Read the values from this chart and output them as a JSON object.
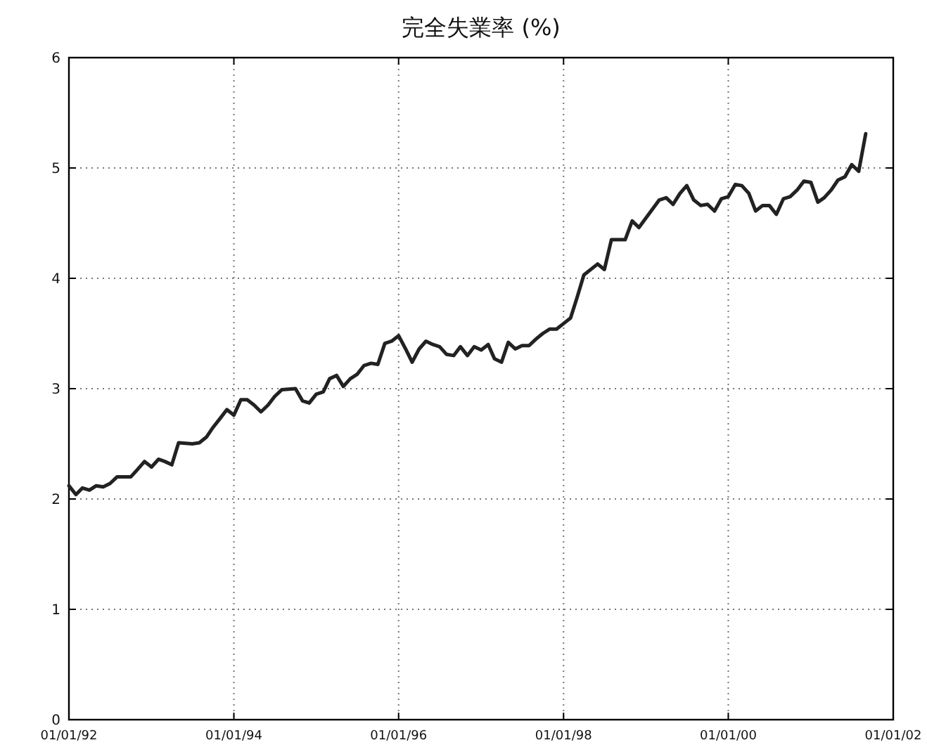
{
  "chart_data": {
    "type": "line",
    "title": "完全失業率 (%)",
    "x": [
      "1992-01",
      "1992-02",
      "1992-03",
      "1992-04",
      "1992-05",
      "1992-06",
      "1992-07",
      "1992-08",
      "1992-10",
      "1992-11",
      "1992-12",
      "1993-01",
      "1993-02",
      "1993-03",
      "1993-04",
      "1993-05",
      "1993-07",
      "1993-08",
      "1993-09",
      "1993-10",
      "1993-11",
      "1993-12",
      "1994-01",
      "1994-02",
      "1994-03",
      "1994-04",
      "1994-05",
      "1994-06",
      "1994-07",
      "1994-08",
      "1994-10",
      "1994-11",
      "1994-12",
      "1995-01",
      "1995-02",
      "1995-03",
      "1995-04",
      "1995-05",
      "1995-06",
      "1995-07",
      "1995-08",
      "1995-09",
      "1995-10",
      "1995-11",
      "1995-12",
      "1996-01",
      "1996-02",
      "1996-03",
      "1996-04",
      "1996-05",
      "1996-06",
      "1996-07",
      "1996-08",
      "1996-09",
      "1996-10",
      "1996-11",
      "1996-12",
      "1997-01",
      "1997-02",
      "1997-03",
      "1997-04",
      "1997-05",
      "1997-06",
      "1997-07",
      "1997-08",
      "1997-09",
      "1997-10",
      "1997-11",
      "1997-12",
      "1998-01",
      "1998-02",
      "1998-03",
      "1998-04",
      "1998-06",
      "1998-07",
      "1998-08",
      "1998-10",
      "1998-11",
      "1998-12",
      "1999-03",
      "1999-04",
      "1999-05",
      "1999-06",
      "1999-07",
      "1999-08",
      "1999-09",
      "1999-10",
      "1999-11",
      "1999-12",
      "2000-01",
      "2000-02",
      "2000-03",
      "2000-04",
      "2000-05",
      "2000-06",
      "2000-07",
      "2000-08",
      "2000-09",
      "2000-10",
      "2000-11",
      "2000-12",
      "2001-01",
      "2001-02",
      "2001-03",
      "2001-04",
      "2001-05",
      "2001-06",
      "2001-07",
      "2001-08",
      "2001-09"
    ],
    "series": [
      {
        "color": "#222222",
        "values": [
          2.12,
          2.04,
          2.1,
          2.08,
          2.12,
          2.11,
          2.14,
          2.2,
          2.2,
          2.27,
          2.34,
          2.29,
          2.36,
          2.34,
          2.31,
          2.51,
          2.5,
          2.51,
          2.56,
          2.65,
          2.73,
          2.81,
          2.76,
          2.9,
          2.9,
          2.85,
          2.79,
          2.85,
          2.93,
          2.99,
          3.0,
          2.89,
          2.87,
          2.95,
          2.97,
          3.09,
          3.12,
          3.02,
          3.09,
          3.13,
          3.21,
          3.23,
          3.22,
          3.41,
          3.43,
          3.48,
          3.36,
          3.24,
          3.36,
          3.43,
          3.4,
          3.38,
          3.31,
          3.3,
          3.38,
          3.3,
          3.38,
          3.35,
          3.4,
          3.27,
          3.24,
          3.42,
          3.36,
          3.39,
          3.39,
          3.45,
          3.5,
          3.54,
          3.54,
          3.59,
          3.64,
          3.82,
          4.03,
          4.13,
          4.08,
          4.35,
          4.35,
          4.52,
          4.46,
          4.71,
          4.73,
          4.67,
          4.77,
          4.84,
          4.71,
          4.66,
          4.67,
          4.61,
          4.72,
          4.74,
          4.85,
          4.84,
          4.77,
          4.61,
          4.66,
          4.66,
          4.58,
          4.72,
          4.74,
          4.8,
          4.88,
          4.87,
          4.69,
          4.73,
          4.8,
          4.89,
          4.92,
          5.03,
          4.97,
          5.31
        ]
      }
    ],
    "xlim": [
      "1992-01-01",
      "2002-01-01"
    ],
    "xticks": [
      {
        "value": "1992-01-01",
        "label": "01/01/92"
      },
      {
        "value": "1994-01-01",
        "label": "01/01/94"
      },
      {
        "value": "1996-01-01",
        "label": "01/01/96"
      },
      {
        "value": "1998-01-01",
        "label": "01/01/98"
      },
      {
        "value": "2000-01-01",
        "label": "01/01/00"
      },
      {
        "value": "2002-01-01",
        "label": "01/01/02"
      }
    ],
    "ylim": [
      0,
      6
    ],
    "yticks": [
      0,
      1,
      2,
      3,
      4,
      5,
      6
    ],
    "grid": true,
    "marker": "none",
    "line_style": "solid"
  }
}
